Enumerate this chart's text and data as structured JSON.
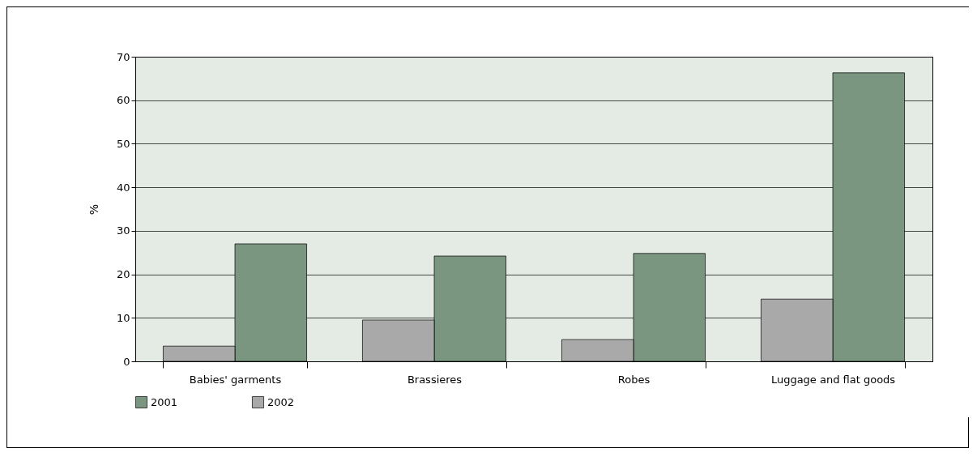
{
  "chart_data": {
    "type": "bar",
    "ylabel": "%",
    "categories": [
      "Babies' garments",
      "Brassieres",
      "Robes",
      "Luggage and flat goods"
    ],
    "series": [
      {
        "name": "2001",
        "color": "#7a9580",
        "values": [
          27.0,
          24.2,
          24.8,
          66.3
        ]
      },
      {
        "name": "2002",
        "color": "#a9a9a9",
        "values": [
          3.5,
          9.5,
          5.0,
          14.3
        ]
      }
    ],
    "ylim": [
      0,
      70
    ],
    "yticks": [
      0,
      10,
      20,
      30,
      40,
      50,
      60,
      70
    ],
    "grid": "y",
    "legend": "bottom"
  }
}
